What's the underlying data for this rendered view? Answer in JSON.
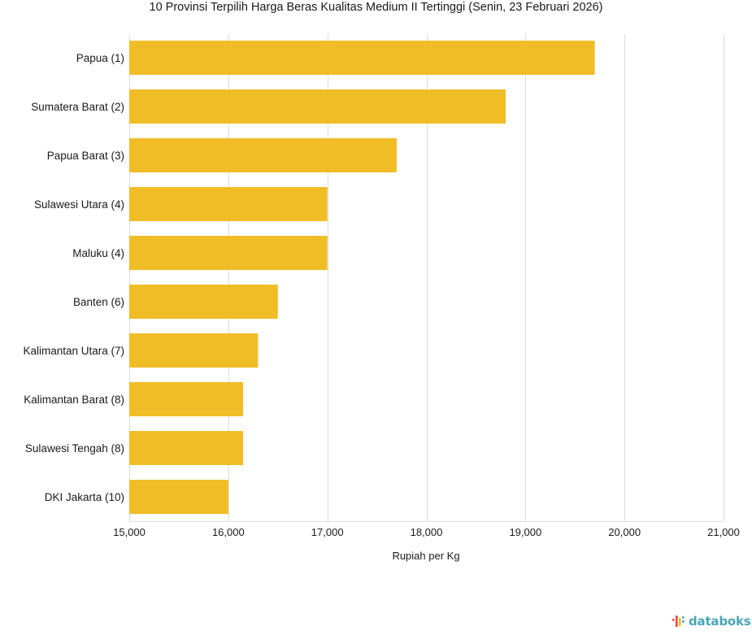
{
  "chart_data": {
    "type": "bar",
    "orientation": "horizontal",
    "title": "10 Provinsi Terpilih Harga Beras Kualitas Medium II Tertinggi (Senin, 23 Februari 2026)",
    "xlabel": "Rupiah per Kg",
    "ylabel": "",
    "categories": [
      "Papua (1)",
      "Sumatera Barat (2)",
      "Papua Barat (3)",
      "Sulawesi Utara (4)",
      "Maluku (4)",
      "Banten (6)",
      "Kalimantan Utara (7)",
      "Kalimantan Barat (8)",
      "Sulawesi Tengah (8)",
      "DKI Jakarta (10)"
    ],
    "values": [
      19700,
      18800,
      17700,
      17000,
      17000,
      16500,
      16300,
      16150,
      16150,
      16000
    ],
    "xlim": [
      15000,
      21000
    ],
    "ticks": [
      15000,
      16000,
      17000,
      18000,
      19000,
      20000,
      21000
    ],
    "tick_labels": [
      "15,000",
      "16,000",
      "17,000",
      "18,000",
      "19,000",
      "20,000",
      "21,000"
    ],
    "grid": "vertical",
    "bar_color": "#f0bd27",
    "grid_color": "#dddddd"
  },
  "brand": {
    "name": "databoks",
    "icon": "databoks-logo-icon",
    "colors": [
      "#e8493f",
      "#f0bd27",
      "#49a6b6"
    ]
  }
}
